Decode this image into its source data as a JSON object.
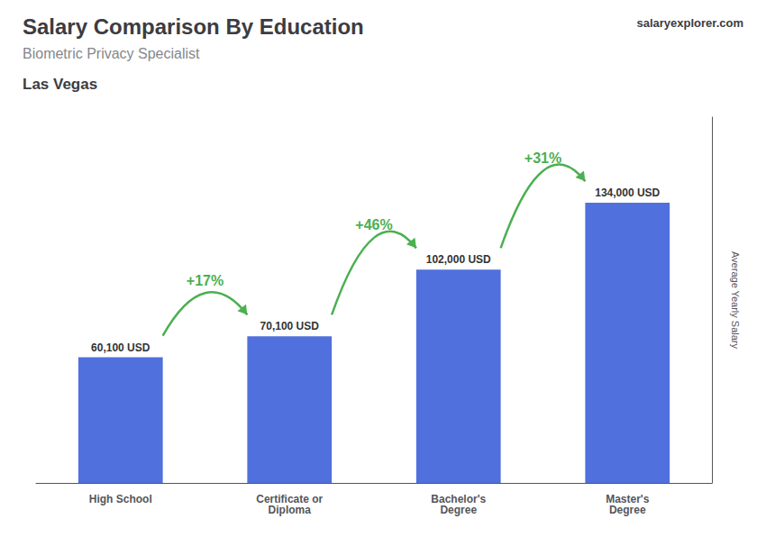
{
  "chart_data": {
    "type": "bar",
    "title": "Salary Comparison By Education",
    "subtitle": "Biometric Privacy Specialist",
    "city": "Las Vegas",
    "source": "salaryexplorer.com",
    "ylabel": "Average Yearly Salary",
    "categories": [
      "High School",
      "Certificate or\nDiploma",
      "Bachelor's\nDegree",
      "Master's\nDegree"
    ],
    "values": [
      60100,
      70100,
      102000,
      134000
    ],
    "value_labels": [
      "60,100 USD",
      "70,100 USD",
      "102,000 USD",
      "134,000 USD"
    ],
    "data_labels": true,
    "annotations": [
      {
        "text": "+17%",
        "from": 0,
        "to": 1
      },
      {
        "text": "+46%",
        "from": 1,
        "to": 2
      },
      {
        "text": "+31%",
        "from": 2,
        "to": 3
      }
    ],
    "ylim": [
      0,
      175000
    ],
    "grid": false,
    "tick_labels": "x"
  }
}
